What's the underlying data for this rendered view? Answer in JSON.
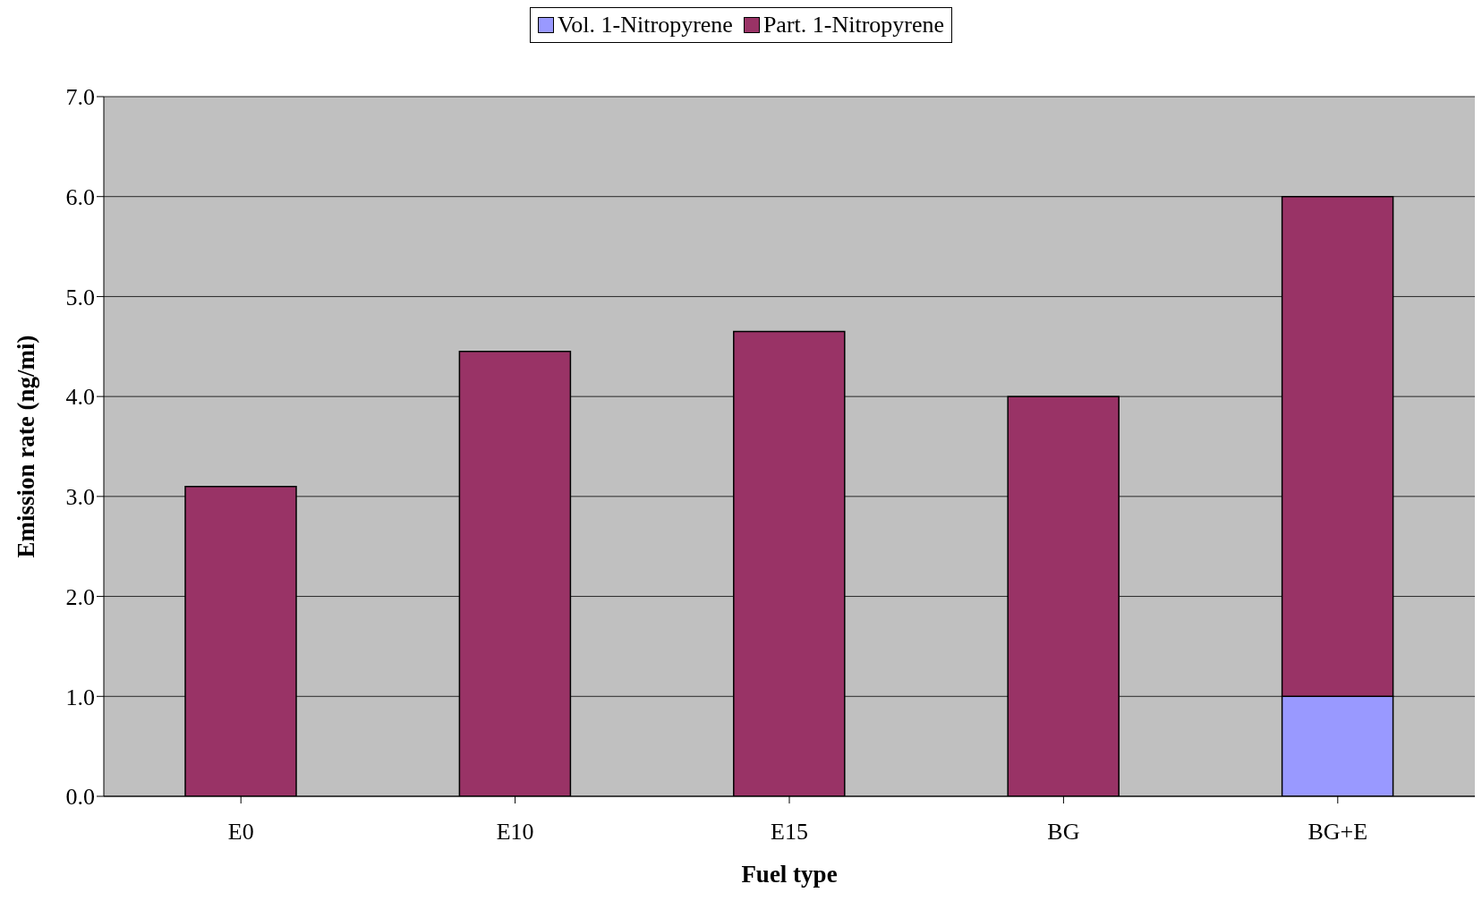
{
  "chart_data": {
    "type": "bar",
    "stacked": true,
    "xlabel": "Fuel type",
    "ylabel": "Emission rate (ng/mi)",
    "categories": [
      "E0",
      "E10",
      "E15",
      "BG",
      "BG+E"
    ],
    "series": [
      {
        "name": "Vol. 1-Nitropyrene",
        "color": "#9999ff",
        "values": [
          null,
          null,
          null,
          null,
          1.0
        ]
      },
      {
        "name": "Part. 1-Nitropyrene",
        "color": "#993366",
        "values": [
          3.1,
          4.45,
          4.65,
          4.0,
          5.0
        ]
      }
    ],
    "ylim": [
      0,
      7
    ],
    "yticks": [
      {
        "value": 0,
        "label": "0.0"
      },
      {
        "value": 1,
        "label": "1.0"
      },
      {
        "value": 2,
        "label": "2.0"
      },
      {
        "value": 3,
        "label": "3.0"
      },
      {
        "value": 4,
        "label": "4.0"
      },
      {
        "value": 5,
        "label": "5.0"
      },
      {
        "value": 6,
        "label": "6.0"
      },
      {
        "value": 7,
        "label": "7.0"
      }
    ],
    "grid": "y",
    "legend": "top"
  }
}
